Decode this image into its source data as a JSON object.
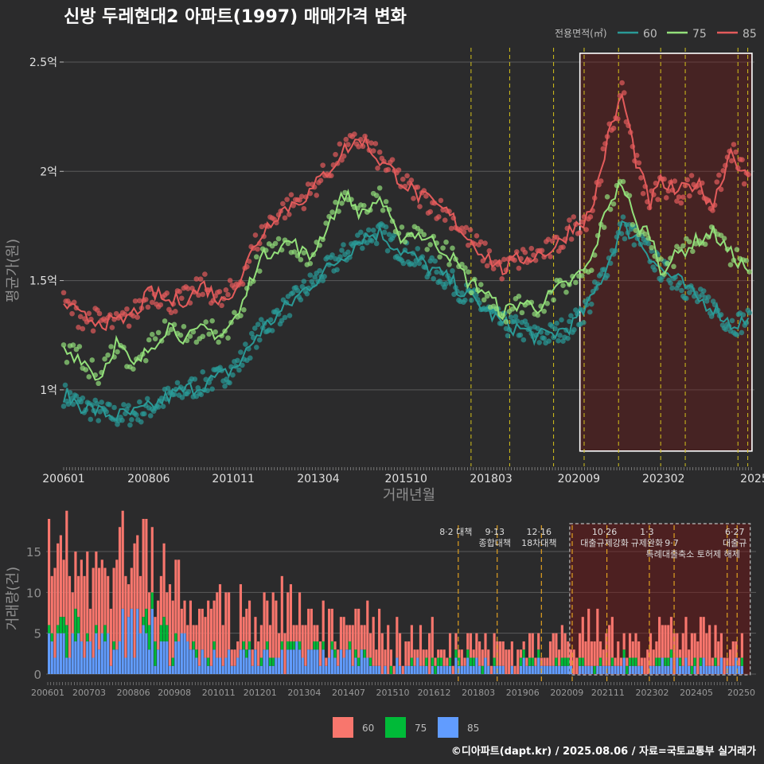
{
  "chart_data": [
    {
      "type": "line",
      "title": "신방 두레현대2 아파트(1997) 매매가격 변화",
      "xlabel": "거래년월",
      "ylabel": "평균가(원)",
      "ylim": [
        0.65,
        2.58
      ],
      "y_ticks": [
        {
          "value": 1.0,
          "label": "1억"
        },
        {
          "value": 1.5,
          "label": "1.5억"
        },
        {
          "value": 2.0,
          "label": "2억"
        },
        {
          "value": 2.5,
          "label": "2.5억"
        }
      ],
      "x_ticks": [
        "200601",
        "200806",
        "201011",
        "201304",
        "201510",
        "201803",
        "202009",
        "202302",
        "2025"
      ],
      "legend_title": "전용면적(㎡)",
      "legend_position": "top-right",
      "colors": {
        "60": "#2a9a97",
        "75": "#93e07a",
        "85": "#e35b5b"
      },
      "series": [
        {
          "name": "60",
          "points": [
            [
              2006.0,
              0.98
            ],
            [
              2006.5,
              0.93
            ],
            [
              2007.0,
              0.9
            ],
            [
              2007.5,
              0.88
            ],
            [
              2008.0,
              0.89
            ],
            [
              2008.5,
              0.92
            ],
            [
              2009.0,
              0.97
            ],
            [
              2009.5,
              1.0
            ],
            [
              2010.0,
              1.03
            ],
            [
              2010.5,
              1.06
            ],
            [
              2011.0,
              1.12
            ],
            [
              2011.5,
              1.25
            ],
            [
              2012.0,
              1.33
            ],
            [
              2012.5,
              1.4
            ],
            [
              2013.0,
              1.48
            ],
            [
              2013.5,
              1.55
            ],
            [
              2014.0,
              1.62
            ],
            [
              2014.5,
              1.7
            ],
            [
              2015.0,
              1.72
            ],
            [
              2015.5,
              1.65
            ],
            [
              2016.0,
              1.6
            ],
            [
              2016.5,
              1.55
            ],
            [
              2017.0,
              1.5
            ],
            [
              2017.5,
              1.43
            ],
            [
              2018.0,
              1.37
            ],
            [
              2018.5,
              1.3
            ],
            [
              2019.0,
              1.28
            ],
            [
              2019.5,
              1.24
            ],
            [
              2020.0,
              1.26
            ],
            [
              2020.5,
              1.3
            ],
            [
              2021.0,
              1.4
            ],
            [
              2021.5,
              1.58
            ],
            [
              2021.9,
              1.75
            ],
            [
              2022.3,
              1.7
            ],
            [
              2022.7,
              1.62
            ],
            [
              2023.0,
              1.55
            ],
            [
              2023.5,
              1.5
            ],
            [
              2024.0,
              1.42
            ],
            [
              2024.5,
              1.38
            ],
            [
              2025.0,
              1.3
            ],
            [
              2025.5,
              1.32
            ]
          ]
        },
        {
          "name": "75",
          "points": [
            [
              2006.0,
              1.18
            ],
            [
              2006.5,
              1.15
            ],
            [
              2007.0,
              1.05
            ],
            [
              2007.5,
              1.22
            ],
            [
              2008.0,
              1.1
            ],
            [
              2008.5,
              1.2
            ],
            [
              2009.0,
              1.3
            ],
            [
              2009.5,
              1.23
            ],
            [
              2010.0,
              1.28
            ],
            [
              2010.5,
              1.25
            ],
            [
              2011.0,
              1.35
            ],
            [
              2011.5,
              1.58
            ],
            [
              2012.0,
              1.65
            ],
            [
              2012.5,
              1.68
            ],
            [
              2013.0,
              1.6
            ],
            [
              2013.5,
              1.75
            ],
            [
              2014.0,
              1.9
            ],
            [
              2014.5,
              1.8
            ],
            [
              2015.0,
              1.88
            ],
            [
              2015.5,
              1.7
            ],
            [
              2016.0,
              1.72
            ],
            [
              2016.5,
              1.68
            ],
            [
              2017.0,
              1.62
            ],
            [
              2017.5,
              1.5
            ],
            [
              2018.0,
              1.45
            ],
            [
              2018.5,
              1.35
            ],
            [
              2019.0,
              1.4
            ],
            [
              2019.5,
              1.38
            ],
            [
              2020.0,
              1.45
            ],
            [
              2020.5,
              1.5
            ],
            [
              2021.0,
              1.58
            ],
            [
              2021.5,
              1.85
            ],
            [
              2021.9,
              1.95
            ],
            [
              2022.3,
              1.75
            ],
            [
              2022.7,
              1.72
            ],
            [
              2023.0,
              1.55
            ],
            [
              2023.5,
              1.62
            ],
            [
              2024.0,
              1.68
            ],
            [
              2024.5,
              1.72
            ],
            [
              2025.0,
              1.62
            ],
            [
              2025.5,
              1.55
            ]
          ]
        },
        {
          "name": "85",
          "points": [
            [
              2006.0,
              1.4
            ],
            [
              2006.5,
              1.33
            ],
            [
              2007.0,
              1.32
            ],
            [
              2007.5,
              1.3
            ],
            [
              2008.0,
              1.35
            ],
            [
              2008.5,
              1.45
            ],
            [
              2009.0,
              1.4
            ],
            [
              2009.5,
              1.42
            ],
            [
              2010.0,
              1.48
            ],
            [
              2010.5,
              1.4
            ],
            [
              2011.0,
              1.5
            ],
            [
              2011.5,
              1.68
            ],
            [
              2012.0,
              1.8
            ],
            [
              2012.5,
              1.85
            ],
            [
              2013.0,
              1.9
            ],
            [
              2013.5,
              2.0
            ],
            [
              2014.0,
              2.1
            ],
            [
              2014.5,
              2.15
            ],
            [
              2015.0,
              2.05
            ],
            [
              2015.5,
              1.98
            ],
            [
              2016.0,
              1.9
            ],
            [
              2016.5,
              1.85
            ],
            [
              2017.0,
              1.8
            ],
            [
              2017.5,
              1.7
            ],
            [
              2018.0,
              1.62
            ],
            [
              2018.5,
              1.55
            ],
            [
              2019.0,
              1.6
            ],
            [
              2019.5,
              1.62
            ],
            [
              2020.0,
              1.65
            ],
            [
              2020.5,
              1.75
            ],
            [
              2021.0,
              1.8
            ],
            [
              2021.5,
              2.15
            ],
            [
              2021.9,
              2.35
            ],
            [
              2022.3,
              2.05
            ],
            [
              2022.7,
              1.85
            ],
            [
              2023.0,
              1.95
            ],
            [
              2023.5,
              1.9
            ],
            [
              2024.0,
              1.95
            ],
            [
              2024.5,
              1.85
            ],
            [
              2025.0,
              2.1
            ],
            [
              2025.5,
              1.95
            ]
          ]
        }
      ],
      "policy_dates": [
        2017.6,
        2018.7,
        2019.95,
        2020.82,
        2021.8,
        2023.0,
        2023.7,
        2025.2,
        2025.48
      ],
      "highlight_range": [
        2020.7,
        2025.6
      ]
    },
    {
      "type": "bar",
      "stacked": true,
      "xlabel": "",
      "ylabel": "거래량(건)",
      "ylim": [
        0,
        19
      ],
      "y_ticks": [
        0,
        5,
        10,
        15
      ],
      "x_ticks": [
        "200601",
        "200703",
        "200806",
        "200908",
        "201011",
        "201201",
        "201304",
        "201407",
        "201510",
        "201612",
        "201803",
        "201906",
        "202009",
        "202111",
        "202302",
        "202405",
        "20250"
      ],
      "colors": {
        "60": "#f8766d",
        "75": "#00ba38",
        "85": "#619cff"
      },
      "series_names": [
        "60",
        "75",
        "85"
      ],
      "yearly_volume": {
        "2006": [
          9,
          3,
          3
        ],
        "2007": [
          8,
          2,
          3
        ],
        "2008": [
          9,
          2,
          5
        ],
        "2009": [
          6,
          2,
          3
        ],
        "2010": [
          6,
          1,
          2
        ],
        "2011": [
          5,
          1,
          2
        ],
        "2012": [
          5,
          1,
          2
        ],
        "2013": [
          4,
          1,
          2
        ],
        "2014": [
          4,
          1,
          2
        ],
        "2015": [
          4,
          1,
          1
        ],
        "2016": [
          3,
          1,
          1
        ],
        "2017": [
          2,
          1,
          1
        ],
        "2018": [
          2,
          1,
          1
        ],
        "2019": [
          2,
          1,
          1
        ],
        "2020": [
          3,
          1,
          1
        ],
        "2021": [
          4,
          1,
          1
        ],
        "2022": [
          2,
          1,
          1
        ],
        "2023": [
          3,
          1,
          1
        ],
        "2024": [
          3,
          1,
          1
        ],
        "2025": [
          2,
          1,
          1
        ]
      },
      "annotations": [
        {
          "label": "8·2 대책",
          "date": 2017.6,
          "row": 0
        },
        {
          "label": "9·13",
          "date": 2018.7,
          "row": 0
        },
        {
          "label": "종합대책",
          "date": 2018.7,
          "row": 1
        },
        {
          "label": "12·16",
          "date": 2019.95,
          "row": 0
        },
        {
          "label": "18차대책",
          "date": 2019.95,
          "row": 1
        },
        {
          "label": "10·26",
          "date": 2021.8,
          "row": 0
        },
        {
          "label": "대출규제강화",
          "date": 2021.8,
          "row": 1
        },
        {
          "label": "1·3",
          "date": 2023.0,
          "row": 0
        },
        {
          "label": "규제완화",
          "date": 2023.0,
          "row": 1
        },
        {
          "label": "9·7",
          "date": 2023.7,
          "row": 1
        },
        {
          "label": "특례대출축소 토허제 해제",
          "date": 2024.3,
          "row": 2
        },
        {
          "label": "6·27",
          "date": 2025.48,
          "row": 0
        },
        {
          "label": "대출규",
          "date": 2025.48,
          "row": 1
        }
      ],
      "policy_dates": [
        2017.6,
        2018.7,
        2019.95,
        2020.82,
        2021.8,
        2023.0,
        2023.7,
        2025.2,
        2025.48
      ],
      "highlight_range": [
        2020.75,
        2025.85
      ]
    }
  ],
  "legend_bottom": [
    "60",
    "75",
    "85"
  ],
  "footer": "©디아파트(dapt.kr) / 2025.08.06 / 자료=국토교통부 실거래가"
}
